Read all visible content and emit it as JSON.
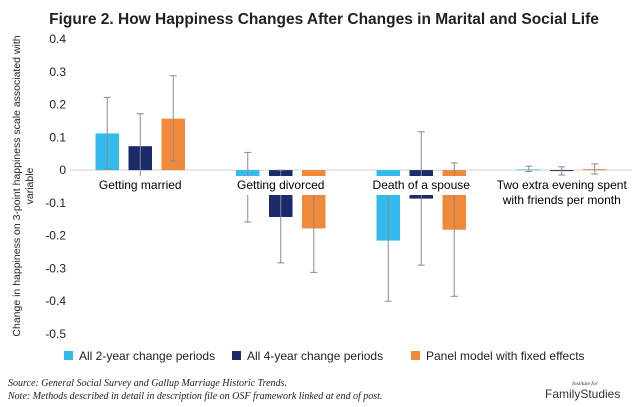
{
  "chart_data": {
    "type": "bar",
    "title": "Figure 2. How Happiness Changes After Changes in Marital and Social Life",
    "ylabel_lines": [
      "Change in happiness on 3-point happiness scale associated with",
      "variable"
    ],
    "ylim": [
      -0.5,
      0.4
    ],
    "yticks": [
      0.4,
      0.3,
      0.2,
      0.1,
      0,
      -0.1,
      -0.2,
      -0.3,
      -0.4,
      -0.5
    ],
    "ytick_labels": [
      "0.4",
      "0.3",
      "0.2",
      "0.1",
      "0",
      "-0.1",
      "-0.2",
      "-0.3",
      "-0.4",
      "-0.5"
    ],
    "grid": false,
    "legend_position": "bottom",
    "categories": [
      [
        "Getting married"
      ],
      [
        "Getting divorced"
      ],
      [
        "Death of a spouse"
      ],
      [
        "Two extra evening spent",
        "with friends per month"
      ]
    ],
    "series": [
      {
        "name": "All 2-year change periods",
        "color": "#33bbee",
        "values": [
          0.112,
          -0.052,
          -0.215,
          0.002
        ],
        "err_low": [
          0.005,
          -0.158,
          -0.4,
          -0.004
        ],
        "err_high": [
          0.222,
          0.054,
          -0.03,
          0.012
        ]
      },
      {
        "name": "All 4-year change periods",
        "color": "#1b2a6b",
        "values": [
          0.073,
          -0.143,
          -0.087,
          -0.003
        ],
        "err_low": [
          -0.023,
          -0.283,
          -0.29,
          -0.015
        ],
        "err_high": [
          0.172,
          0.0,
          0.117,
          0.01
        ]
      },
      {
        "name": "Panel model with fixed effects",
        "color": "#f08a3a",
        "values": [
          0.157,
          -0.178,
          -0.182,
          0.003
        ],
        "err_low": [
          0.028,
          -0.312,
          -0.385,
          -0.012
        ],
        "err_high": [
          0.288,
          -0.045,
          0.022,
          0.019
        ]
      }
    ]
  },
  "footer": {
    "source": "Source: General Social Survey and Gallup Marriage Historic Trends.",
    "note": "Note: Methods described in detail in description file on OSF framework linked at end of post."
  },
  "brand": {
    "small": "Institute for",
    "name": "FamilyStudies"
  }
}
